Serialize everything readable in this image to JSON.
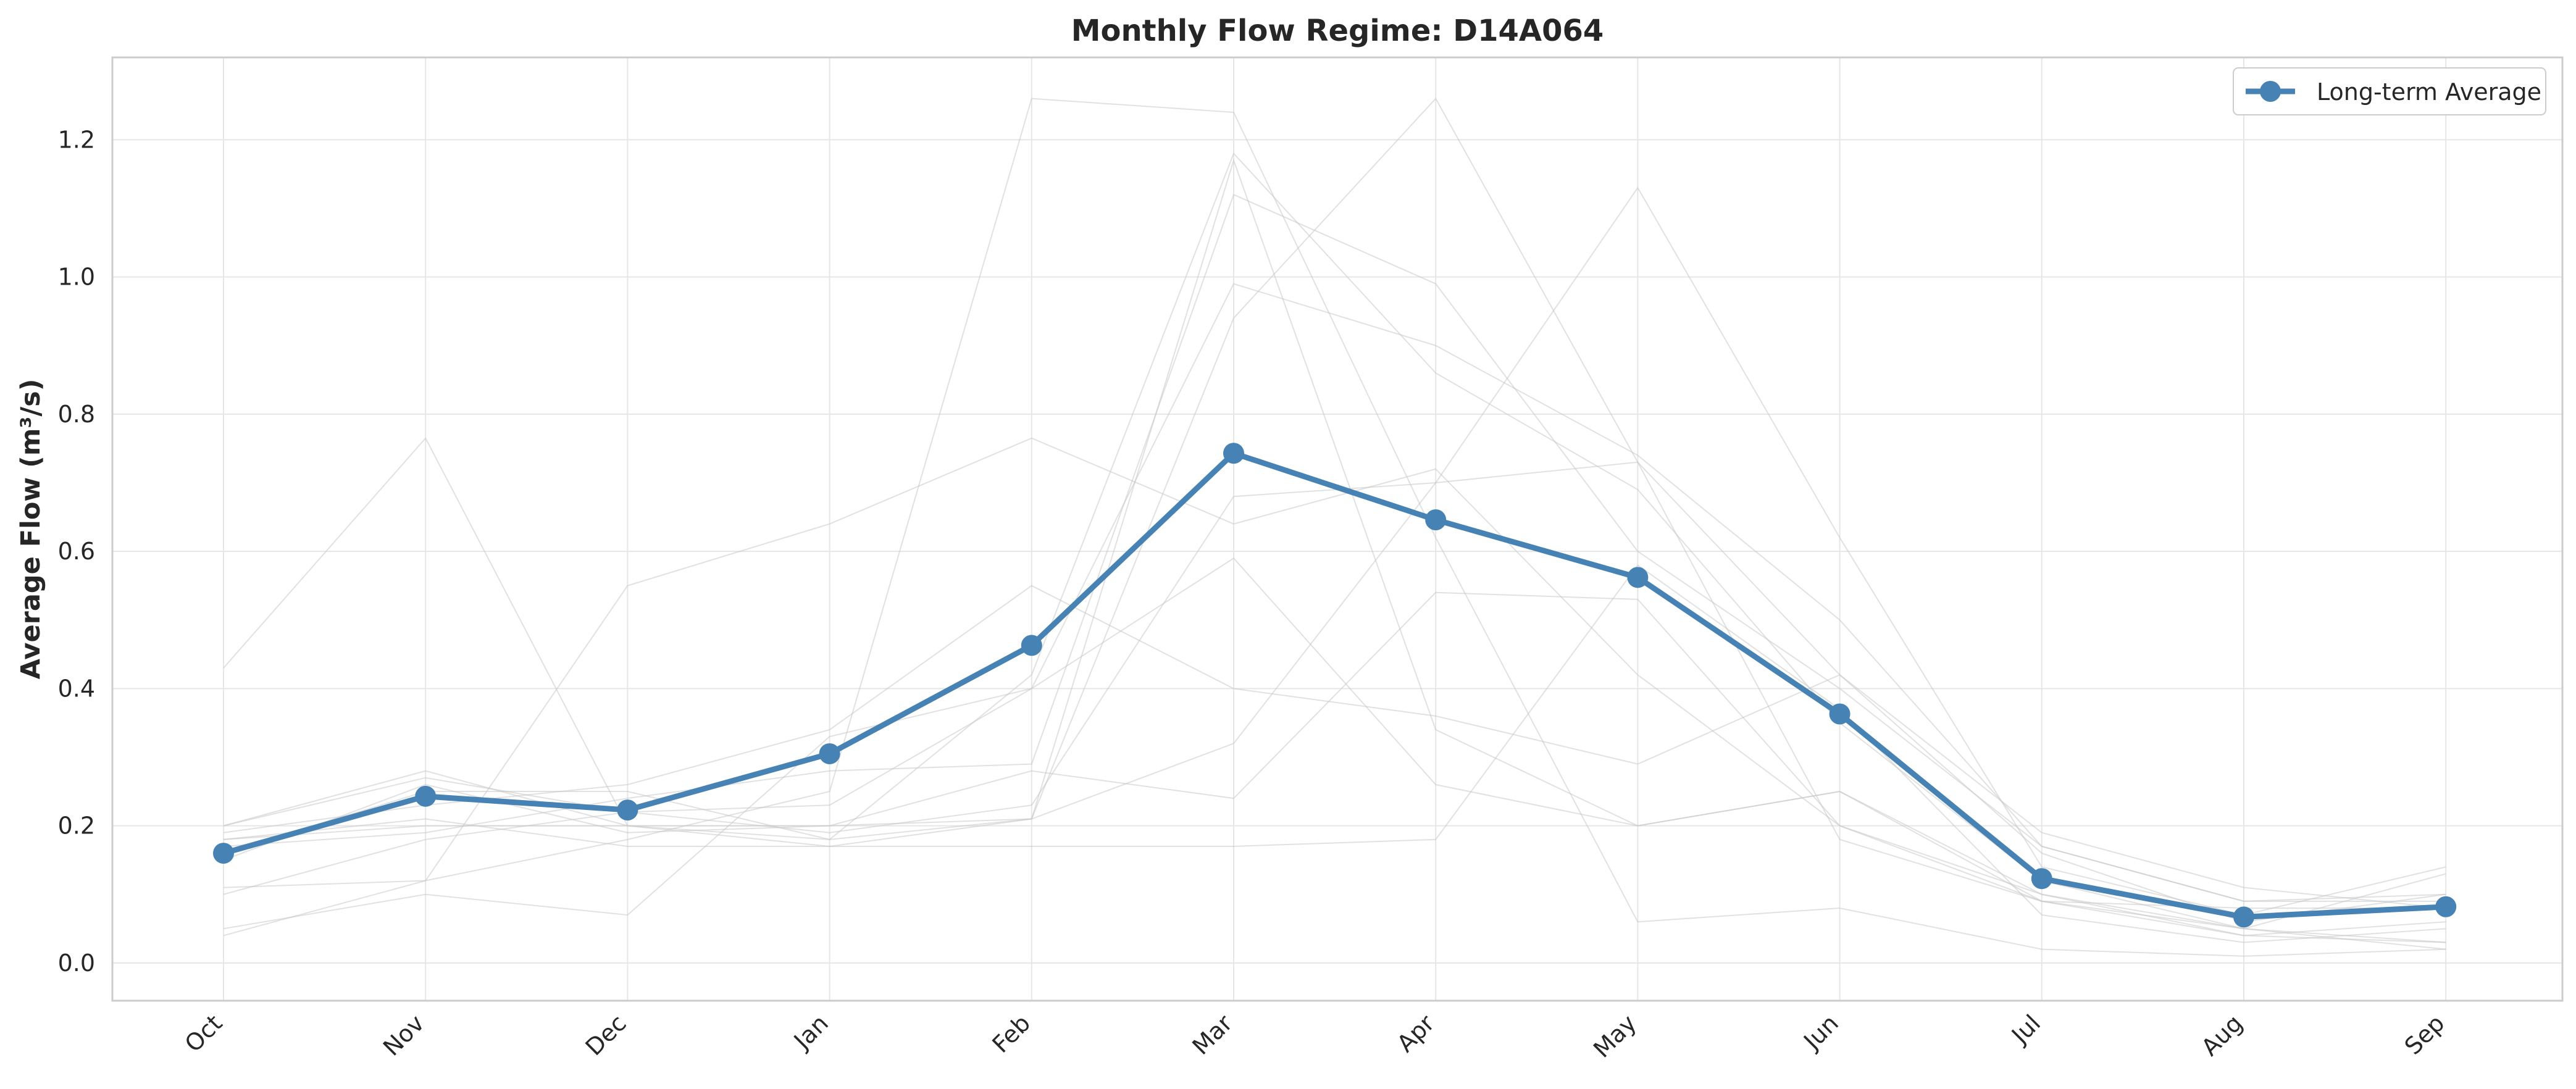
{
  "chart_data": {
    "type": "line",
    "title": "Monthly Flow Regime: D14A064",
    "xlabel": "",
    "ylabel": "Average Flow (m³/s)",
    "categories": [
      "Oct",
      "Nov",
      "Dec",
      "Jan",
      "Feb",
      "Mar",
      "Apr",
      "May",
      "Jun",
      "Jul",
      "Aug",
      "Sep"
    ],
    "ylim": [
      -0.055,
      1.32
    ],
    "yticks": [
      0.0,
      0.2,
      0.4,
      0.6,
      0.8,
      1.0,
      1.2
    ],
    "ytick_labels": [
      "0.0",
      "0.2",
      "0.4",
      "0.6",
      "0.8",
      "1.0",
      "1.2"
    ],
    "grid": true,
    "legend": {
      "position": "top-right",
      "entries": [
        "Long-term Average"
      ]
    },
    "colors": {
      "average": "#4682b4",
      "years": "#c8c8c8",
      "grid": "#e6e6e6",
      "spine": "#cccccc"
    },
    "series": [
      {
        "name": "Long-term Average",
        "values": [
          0.16,
          0.243,
          0.223,
          0.305,
          0.463,
          0.743,
          0.646,
          0.562,
          0.363,
          0.123,
          0.067,
          0.082
        ]
      }
    ],
    "background_series": [
      {
        "values": [
          0.43,
          0.765,
          0.2,
          0.2,
          0.21,
          0.32,
          0.7,
          0.73,
          0.42,
          0.19,
          0.11,
          0.08
        ]
      },
      {
        "values": [
          0.11,
          0.12,
          0.55,
          0.64,
          0.765,
          0.64,
          0.72,
          0.42,
          0.2,
          0.09,
          0.05,
          0.03
        ]
      },
      {
        "values": [
          0.2,
          0.28,
          0.2,
          0.17,
          0.21,
          1.17,
          0.34,
          0.2,
          0.25,
          0.1,
          0.04,
          0.03
        ]
      },
      {
        "values": [
          0.05,
          0.1,
          0.07,
          0.33,
          0.4,
          0.59,
          0.26,
          0.2,
          0.25,
          0.09,
          0.04,
          0.06
        ]
      },
      {
        "values": [
          0.19,
          0.23,
          0.26,
          0.34,
          0.55,
          0.4,
          0.36,
          0.29,
          0.42,
          0.16,
          0.06,
          0.1
        ]
      },
      {
        "values": [
          0.16,
          0.25,
          0.25,
          0.18,
          0.21,
          0.94,
          1.26,
          0.73,
          0.18,
          0.09,
          0.08,
          0.08
        ]
      },
      {
        "values": [
          0.15,
          0.26,
          0.19,
          0.2,
          0.28,
          0.24,
          0.54,
          0.53,
          0.2,
          0.1,
          0.05,
          0.02
        ]
      },
      {
        "values": [
          0.04,
          0.12,
          0.18,
          0.25,
          1.26,
          1.24,
          0.62,
          0.06,
          0.08,
          0.02,
          0.01,
          0.02
        ]
      },
      {
        "values": [
          0.2,
          0.27,
          0.22,
          0.19,
          0.23,
          0.68,
          0.7,
          1.13,
          0.62,
          0.14,
          0.07,
          0.14
        ]
      },
      {
        "values": [
          0.1,
          0.18,
          0.22,
          0.23,
          0.4,
          0.99,
          0.9,
          0.74,
          0.5,
          0.17,
          0.09,
          0.1
        ]
      },
      {
        "values": [
          0.17,
          0.19,
          0.24,
          0.28,
          0.29,
          1.12,
          0.99,
          0.6,
          0.4,
          0.17,
          0.09,
          0.09
        ]
      },
      {
        "values": [
          0.18,
          0.2,
          0.2,
          0.18,
          0.42,
          1.18,
          0.86,
          0.69,
          0.35,
          0.12,
          0.05,
          0.13
        ]
      },
      {
        "values": [
          0.18,
          0.21,
          0.17,
          0.17,
          0.17,
          0.17,
          0.18,
          0.58,
          0.37,
          0.07,
          0.03,
          0.05
        ]
      }
    ]
  }
}
